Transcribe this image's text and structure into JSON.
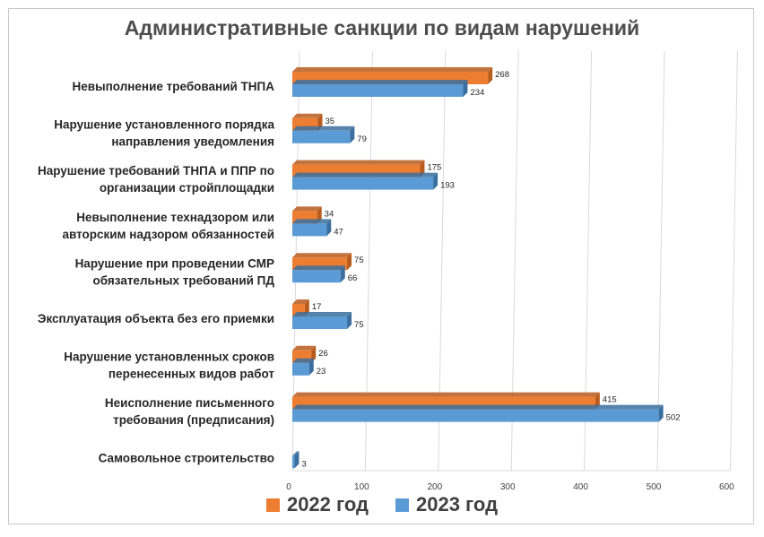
{
  "chart_data": {
    "type": "bar",
    "orientation": "horizontal",
    "title": "Административные санкции по видам нарушений",
    "categories": [
      [
        "Невыполнение требований ТНПА"
      ],
      [
        "Нарушение установленного порядка",
        "направления уведомления"
      ],
      [
        "Нарушение требований ТНПА и ППР по",
        "организации стройплощадки"
      ],
      [
        "Невыполнение технадзором или",
        "авторским надзором обязанностей"
      ],
      [
        "Нарушение при проведении СМР",
        "обязательных требований ПД"
      ],
      [
        "Эксплуатация объекта без его приемки"
      ],
      [
        "Нарушение установленных сроков",
        "перенесенных видов работ"
      ],
      [
        "Неисполнение письменного",
        "требования (предписания)"
      ],
      [
        "Самовольное строительство"
      ]
    ],
    "series": [
      {
        "name": "2022 год",
        "color": "#ed7d31",
        "values": [
          268,
          35,
          175,
          34,
          75,
          17,
          26,
          415,
          null
        ]
      },
      {
        "name": "2023 год",
        "color": "#5b9bd5",
        "values": [
          234,
          79,
          193,
          47,
          66,
          75,
          23,
          502,
          3
        ]
      }
    ],
    "xlim": [
      0,
      600
    ],
    "xticks": [
      0,
      100,
      200,
      300,
      400,
      500,
      600
    ],
    "grid": true,
    "legend_position": "bottom",
    "bar_style": "3d"
  }
}
